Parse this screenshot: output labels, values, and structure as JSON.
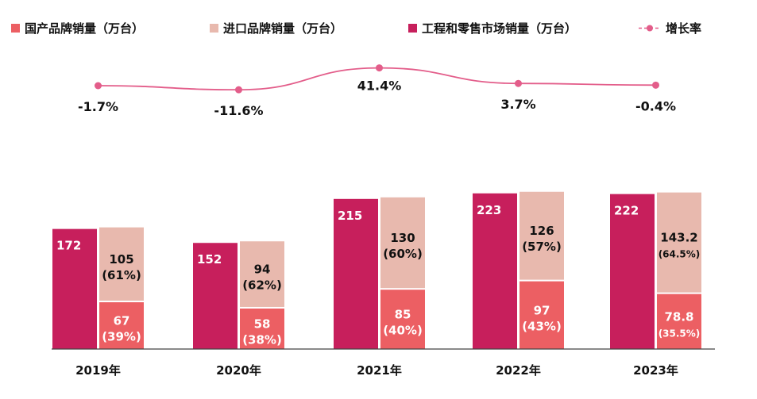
{
  "chart_data": {
    "type": "bar",
    "categories": [
      "2019年",
      "2020年",
      "2021年",
      "2022年",
      "2023年"
    ],
    "legend_position": "top",
    "series": [
      {
        "name": "国产品牌销量（万台）",
        "color": "#ec5f63",
        "stacked": true,
        "values": [
          67,
          58,
          85,
          97,
          78.8
        ],
        "value_labels": [
          "67",
          "58",
          "85",
          "97",
          "78.8"
        ],
        "share_labels": [
          "(39%)",
          "(38%)",
          "(40%)",
          "(43%)",
          "(35.5%)"
        ]
      },
      {
        "name": "进口品牌销量（万台）",
        "color": "#e8b9ae",
        "stacked": true,
        "values": [
          105,
          94,
          130,
          126,
          143.2
        ],
        "value_labels": [
          "105",
          "94",
          "130",
          "126",
          "143.2"
        ],
        "share_labels": [
          "(61%)",
          "(62%)",
          "(60%)",
          "(57%)",
          "(64.5%)"
        ]
      },
      {
        "name": "工程和零售市场销量（万台）",
        "color": "#c71f5c",
        "stacked": false,
        "values": [
          172,
          152,
          215,
          223,
          222
        ],
        "value_labels": [
          "172",
          "152",
          "215",
          "223",
          "222"
        ]
      },
      {
        "name": "增长率",
        "color": "#e35d8a",
        "type": "line",
        "values": [
          -1.7,
          -11.6,
          41.4,
          3.7,
          -0.4
        ],
        "value_labels": [
          "-1.7%",
          "-11.6%",
          "41.4%",
          "3.7%",
          "-0.4%"
        ]
      }
    ],
    "grid": false
  }
}
